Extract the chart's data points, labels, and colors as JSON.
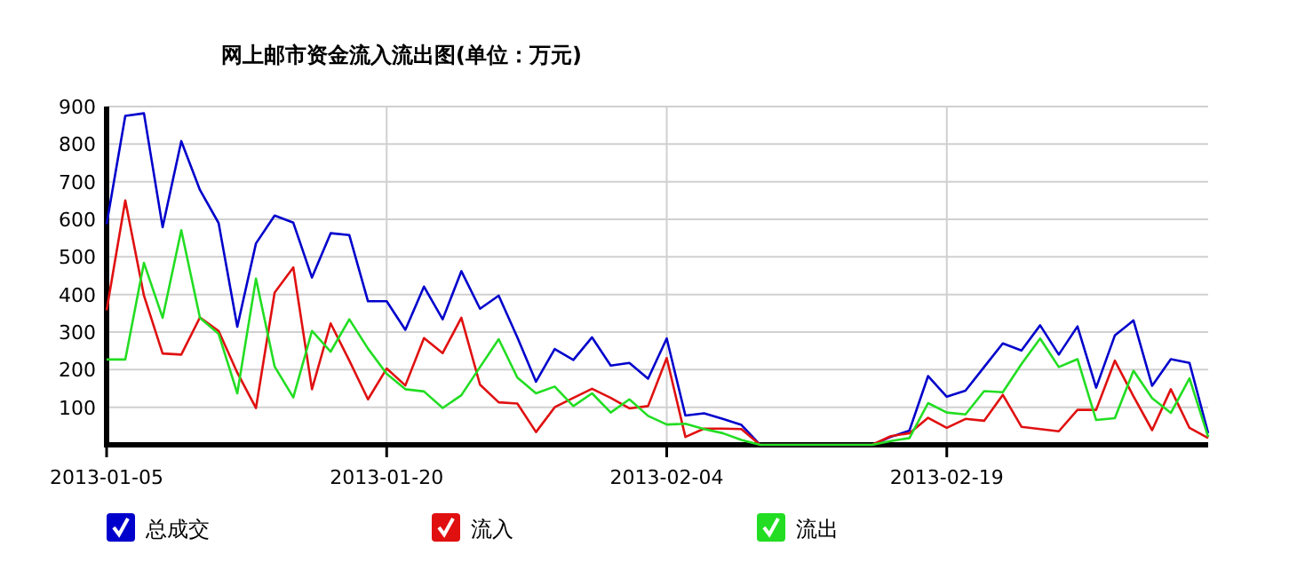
{
  "chart_data": {
    "type": "line",
    "title": "网上邮市资金流入流出图(单位：万元)",
    "x": [
      "2013-01-05",
      "2013-01-06",
      "2013-01-07",
      "2013-01-08",
      "2013-01-09",
      "2013-01-10",
      "2013-01-11",
      "2013-01-12",
      "2013-01-13",
      "2013-01-14",
      "2013-01-15",
      "2013-01-16",
      "2013-01-17",
      "2013-01-18",
      "2013-01-19",
      "2013-01-20",
      "2013-01-21",
      "2013-01-22",
      "2013-01-23",
      "2013-01-24",
      "2013-01-25",
      "2013-01-26",
      "2013-01-27",
      "2013-01-28",
      "2013-01-29",
      "2013-01-30",
      "2013-01-31",
      "2013-02-01",
      "2013-02-02",
      "2013-02-03",
      "2013-02-04",
      "2013-02-05",
      "2013-02-06",
      "2013-02-07",
      "2013-02-08",
      "2013-02-09",
      "2013-02-10",
      "2013-02-11",
      "2013-02-12",
      "2013-02-13",
      "2013-02-14",
      "2013-02-15",
      "2013-02-16",
      "2013-02-17",
      "2013-02-18",
      "2013-02-19",
      "2013-02-20",
      "2013-02-21",
      "2013-02-22",
      "2013-02-23",
      "2013-02-24",
      "2013-02-25",
      "2013-02-26",
      "2013-02-27",
      "2013-02-28",
      "2013-03-01",
      "2013-03-02",
      "2013-03-03",
      "2013-03-04",
      "2013-03-05"
    ],
    "series": [
      {
        "name": "总成交",
        "color": "#0000cc",
        "values": [
          587,
          875,
          882,
          579,
          808,
          678,
          590,
          314,
          536,
          610,
          591,
          445,
          563,
          558,
          382,
          382,
          306,
          421,
          334,
          462,
          362,
          397,
          286,
          168,
          255,
          226,
          286,
          211,
          218,
          176,
          283,
          78,
          84,
          69,
          53,
          0,
          0,
          0,
          0,
          0,
          0,
          0,
          21,
          38,
          183,
          128,
          144,
          207,
          270,
          251,
          318,
          240,
          315,
          152,
          291,
          331,
          157,
          228,
          218,
          31
        ]
      },
      {
        "name": "流入",
        "color": "#e01010",
        "values": [
          358,
          650,
          397,
          243,
          240,
          339,
          303,
          192,
          98,
          405,
          472,
          148,
          323,
          224,
          121,
          203,
          158,
          284,
          244,
          338,
          160,
          113,
          110,
          34,
          100,
          125,
          149,
          125,
          97,
          103,
          231,
          21,
          43,
          43,
          42,
          0,
          0,
          0,
          0,
          0,
          0,
          0,
          23,
          31,
          72,
          45,
          69,
          64,
          133,
          48,
          42,
          36,
          93,
          93,
          224,
          129,
          39,
          148,
          45,
          18
        ]
      },
      {
        "name": "流出",
        "color": "#22dd22",
        "values": [
          227,
          227,
          484,
          338,
          571,
          338,
          295,
          137,
          442,
          208,
          126,
          303,
          248,
          334,
          256,
          189,
          148,
          142,
          98,
          132,
          207,
          281,
          179,
          137,
          155,
          103,
          137,
          86,
          121,
          77,
          54,
          56,
          42,
          31,
          13,
          0,
          0,
          0,
          0,
          0,
          0,
          0,
          10,
          18,
          111,
          86,
          81,
          143,
          140,
          215,
          283,
          207,
          228,
          66,
          71,
          197,
          124,
          85,
          177,
          21
        ]
      }
    ],
    "xlim": [
      "2013-01-05",
      "2013-03-05"
    ],
    "xticks": [
      "2013-01-05",
      "2013-01-20",
      "2013-02-04",
      "2013-02-19"
    ],
    "ylim": [
      0,
      900
    ],
    "yticks": [
      100,
      200,
      300,
      400,
      500,
      600,
      700,
      800,
      900
    ],
    "grid": true,
    "legend": "bottom"
  }
}
